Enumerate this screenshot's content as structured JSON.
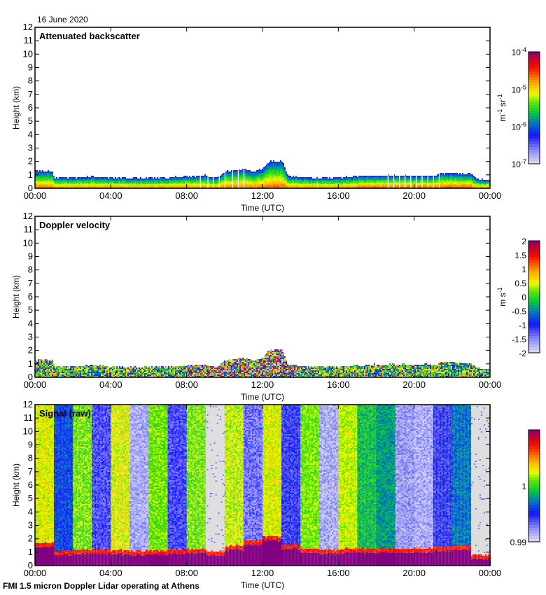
{
  "header": {
    "date": "16 June 2020"
  },
  "footer": {
    "caption": "FMI 1.5 micron Doppler Lidar operating at Athens"
  },
  "chart_data": [
    {
      "type": "heatmap",
      "title": "Attenuated backscatter",
      "xlabel": "Time (UTC)",
      "ylabel": "Height (km)",
      "xticks": [
        "00:00",
        "04:00",
        "08:00",
        "12:00",
        "16:00",
        "20:00",
        "00:00"
      ],
      "yticks": [
        "0",
        "1",
        "2",
        "3",
        "4",
        "5",
        "6",
        "7",
        "8",
        "9",
        "10",
        "11",
        "12"
      ],
      "xlim_hours": [
        0,
        24
      ],
      "ylim_km": [
        0,
        12
      ],
      "colorbar": {
        "label": "m-1 sr-1",
        "label_parts": [
          "m",
          "-1",
          " sr",
          "-1"
        ],
        "scale": "log",
        "range": [
          1e-07,
          0.0001
        ],
        "ticks": [
          {
            "base": "10",
            "exp": "-7",
            "value": 1e-07
          },
          {
            "base": "10",
            "exp": "-6",
            "value": 1e-06
          },
          {
            "base": "10",
            "exp": "-5",
            "value": 1e-05
          },
          {
            "base": "10",
            "exp": "-4",
            "value": 0.0001
          }
        ]
      },
      "layer_top_km": [
        [
          0,
          1.35
        ],
        [
          0.9,
          1.35
        ],
        [
          1.0,
          0.85
        ],
        [
          2,
          0.85
        ],
        [
          3,
          0.95
        ],
        [
          4,
          0.85
        ],
        [
          5,
          0.8
        ],
        [
          6,
          0.85
        ],
        [
          7,
          0.85
        ],
        [
          8,
          0.95
        ],
        [
          9,
          1.0
        ],
        [
          9.5,
          0.8
        ],
        [
          10,
          1.3
        ],
        [
          11,
          1.5
        ],
        [
          11.5,
          1.3
        ],
        [
          12,
          1.5
        ],
        [
          12.3,
          2.1
        ],
        [
          13,
          2.1
        ],
        [
          13.3,
          1.0
        ],
        [
          14,
          0.9
        ],
        [
          15,
          0.85
        ],
        [
          16,
          0.85
        ],
        [
          17,
          0.95
        ],
        [
          18,
          1.0
        ],
        [
          19,
          1.0
        ],
        [
          20,
          1.0
        ],
        [
          21,
          1.0
        ],
        [
          21.5,
          1.2
        ],
        [
          22,
          1.2
        ],
        [
          23,
          1.1
        ],
        [
          23.3,
          0.7
        ],
        [
          24,
          0.7
        ]
      ],
      "gap_hours": [
        8.7,
        9.1,
        9.4,
        9.7,
        10.0,
        10.4,
        10.7,
        11.0,
        18.6,
        18.9,
        19.2,
        19.5,
        19.8,
        20.1,
        20.4,
        20.7,
        21.0,
        21.3
      ]
    },
    {
      "type": "heatmap",
      "title": "Doppler velocity",
      "xlabel": "Time (UTC)",
      "ylabel": "Height (km)",
      "xticks": [
        "00:00",
        "04:00",
        "08:00",
        "12:00",
        "16:00",
        "20:00",
        "00:00"
      ],
      "yticks": [
        "0",
        "1",
        "2",
        "3",
        "4",
        "5",
        "6",
        "7",
        "8",
        "9",
        "10",
        "11",
        "12"
      ],
      "xlim_hours": [
        0,
        24
      ],
      "ylim_km": [
        0,
        12
      ],
      "colorbar": {
        "label": "m s-1",
        "label_parts": [
          "m s",
          "-1"
        ],
        "scale": "linear",
        "range": [
          -2,
          2
        ],
        "ticks": [
          {
            "text": "2",
            "value": 2
          },
          {
            "text": "1.5",
            "value": 1.5
          },
          {
            "text": "1",
            "value": 1
          },
          {
            "text": "0.5",
            "value": 0.5
          },
          {
            "text": "0",
            "value": 0
          },
          {
            "text": "-0.5",
            "value": -0.5
          },
          {
            "text": "-1",
            "value": -1
          },
          {
            "text": "-1.5",
            "value": -1.5
          },
          {
            "text": "-2",
            "value": -2
          }
        ]
      }
    },
    {
      "type": "heatmap",
      "title": "Signal (raw)",
      "xlabel": "Time (UTC)",
      "ylabel": "Height (km)",
      "xticks": [
        "00:00",
        "04:00",
        "08:00",
        "12:00",
        "16:00",
        "20:00",
        "00:00"
      ],
      "yticks": [
        "0",
        "1",
        "2",
        "3",
        "4",
        "5",
        "6",
        "7",
        "8",
        "9",
        "10",
        "11",
        "12"
      ],
      "xlim_hours": [
        0,
        24
      ],
      "ylim_km": [
        0,
        12
      ],
      "colorbar": {
        "label": "",
        "scale": "linear",
        "range": [
          0.99,
          1.01
        ],
        "ticks": [
          {
            "text": "1",
            "value": 1.0
          },
          {
            "text": "0.99",
            "value": 0.99
          }
        ]
      },
      "column_level": [
        0.62,
        0.3,
        0.55,
        0.2,
        0.62,
        0.08,
        0.55,
        0.2,
        0.55,
        -1,
        0.6,
        0.15,
        0.62,
        0.22,
        0.55,
        0.08,
        0.6,
        0.45,
        0.4,
        0.1,
        0.08,
        0.22,
        0.35,
        -1
      ],
      "surface_layer_top_km": [
        1.4,
        0.85,
        0.9,
        0.95,
        0.9,
        0.85,
        0.85,
        0.9,
        1.0,
        0.8,
        1.2,
        1.6,
        1.9,
        1.3,
        1.0,
        0.9,
        1.0,
        1.0,
        1.0,
        1.0,
        1.0,
        1.1,
        1.2,
        0.5
      ]
    }
  ]
}
